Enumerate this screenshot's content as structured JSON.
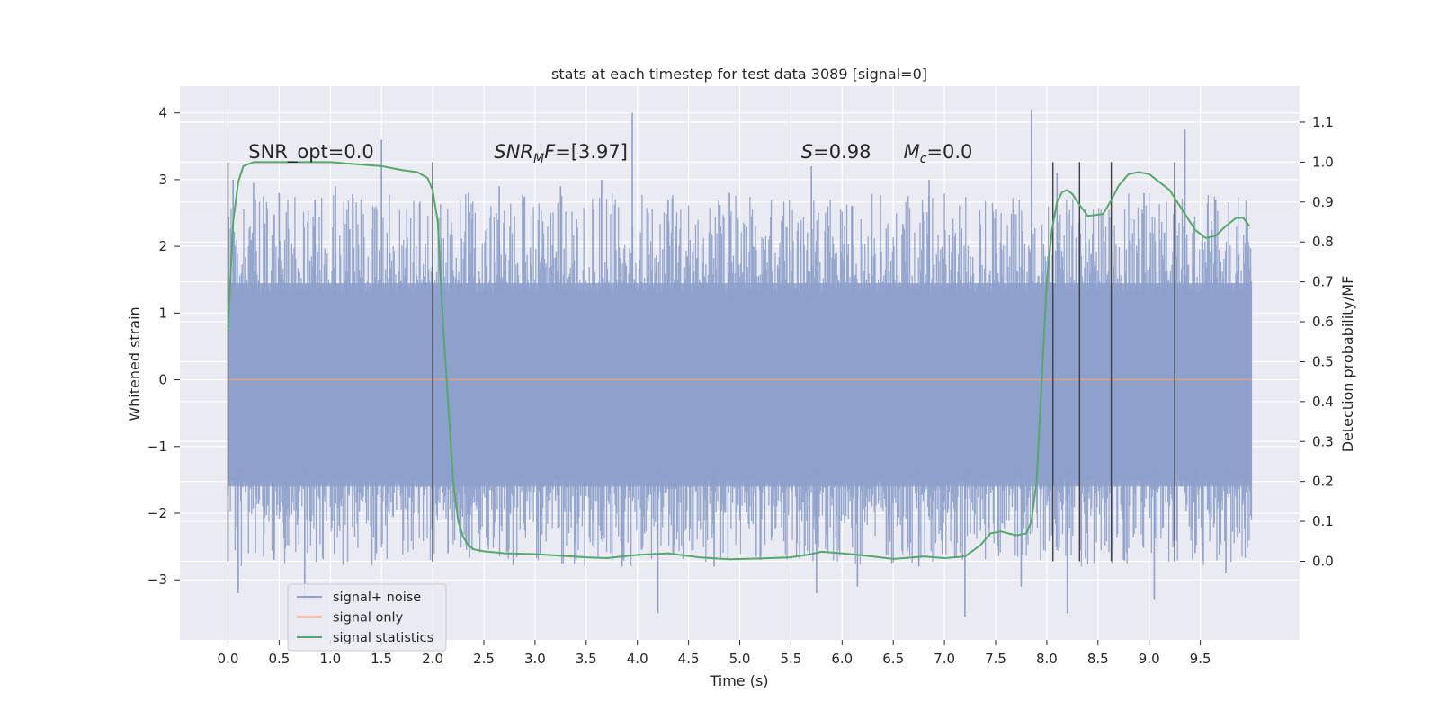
{
  "chart_data": {
    "type": "line",
    "title": "stats at each timestep for test data 3089 [signal=0]",
    "xlabel": "Time (s)",
    "ylabel": "Whitened strain",
    "ylabel_right": "Detection probability/MF",
    "xlim": [
      -0.47,
      10.47
    ],
    "ylim": [
      -3.9,
      4.4
    ],
    "ylim_right": [
      -0.197,
      1.19
    ],
    "x_ticks": [
      0.0,
      0.5,
      1.0,
      1.5,
      2.0,
      2.5,
      3.0,
      3.5,
      4.0,
      4.5,
      5.0,
      5.5,
      6.0,
      6.5,
      7.0,
      7.5,
      8.0,
      8.5,
      9.0,
      9.5
    ],
    "x_tick_labels": [
      "0.0",
      "0.5",
      "1.0",
      "1.5",
      "2.0",
      "2.5",
      "3.0",
      "3.5",
      "4.0",
      "4.5",
      "5.0",
      "5.5",
      "6.0",
      "6.5",
      "7.0",
      "7.5",
      "8.0",
      "8.5",
      "9.0",
      "9.5"
    ],
    "y_ticks": [
      -3,
      -2,
      -1,
      0,
      1,
      2,
      3,
      4
    ],
    "y_tick_labels": [
      "−3",
      "−2",
      "−1",
      "0",
      "1",
      "2",
      "3",
      "4"
    ],
    "y_right_ticks": [
      0.0,
      0.1,
      0.2,
      0.3,
      0.4,
      0.5,
      0.6,
      0.7,
      0.8,
      0.9,
      1.0,
      1.1
    ],
    "y_right_tick_labels": [
      "0.0",
      "0.1",
      "0.2",
      "0.3",
      "0.4",
      "0.5",
      "0.6",
      "0.7",
      "0.8",
      "0.9",
      "1.0",
      "1.1"
    ],
    "grid": true,
    "legend_position": "lower-left",
    "series": [
      {
        "name": "signal+ noise",
        "color": "#8da0cb",
        "axis": "left",
        "x_range": [
          0.0,
          10.0
        ],
        "dense_band": [
          -1.6,
          1.45
        ],
        "peaks_high": [
          [
            0.05,
            3.0
          ],
          [
            0.25,
            2.95
          ],
          [
            0.5,
            2.8
          ],
          [
            0.85,
            2.7
          ],
          [
            1.05,
            2.9
          ],
          [
            1.5,
            3.6
          ],
          [
            2.35,
            2.8
          ],
          [
            2.65,
            2.9
          ],
          [
            3.25,
            2.9
          ],
          [
            3.65,
            3.0
          ],
          [
            3.95,
            4.0
          ],
          [
            4.3,
            2.7
          ],
          [
            4.9,
            2.8
          ],
          [
            5.7,
            3.2
          ],
          [
            6.1,
            2.6
          ],
          [
            6.85,
            3.0
          ],
          [
            7.85,
            4.05
          ],
          [
            8.1,
            3.1
          ],
          [
            8.95,
            2.8
          ],
          [
            9.35,
            3.75
          ],
          [
            9.65,
            2.7
          ]
        ],
        "peaks_low": [
          [
            0.1,
            -3.2
          ],
          [
            0.45,
            -2.7
          ],
          [
            0.75,
            -3.3
          ],
          [
            1.45,
            -2.6
          ],
          [
            2.15,
            -2.6
          ],
          [
            3.05,
            -2.6
          ],
          [
            3.4,
            -2.7
          ],
          [
            3.85,
            -2.8
          ],
          [
            4.2,
            -3.5
          ],
          [
            4.75,
            -2.8
          ],
          [
            5.2,
            -2.7
          ],
          [
            5.75,
            -3.2
          ],
          [
            6.15,
            -3.1
          ],
          [
            6.75,
            -2.8
          ],
          [
            7.2,
            -3.55
          ],
          [
            7.75,
            -3.1
          ],
          [
            8.2,
            -3.5
          ],
          [
            8.75,
            -2.7
          ],
          [
            9.05,
            -3.3
          ],
          [
            9.45,
            -2.6
          ],
          [
            9.75,
            -2.9
          ]
        ]
      },
      {
        "name": "signal only",
        "color": "#e8a07c",
        "axis": "left",
        "x": [
          0.0,
          10.0
        ],
        "values": [
          0,
          0
        ]
      },
      {
        "name": "signal statistics",
        "color": "#55a868",
        "axis": "right",
        "x": [
          0.0,
          0.05,
          0.1,
          0.15,
          0.25,
          0.5,
          1.0,
          1.5,
          1.7,
          1.85,
          1.95,
          2.0,
          2.05,
          2.1,
          2.15,
          2.2,
          2.25,
          2.3,
          2.35,
          2.4,
          2.5,
          2.7,
          3.0,
          3.5,
          3.7,
          4.0,
          4.3,
          4.6,
          4.9,
          5.2,
          5.5,
          5.7,
          5.8,
          6.0,
          6.3,
          6.5,
          6.8,
          7.0,
          7.2,
          7.35,
          7.45,
          7.55,
          7.7,
          7.8,
          7.85,
          7.9,
          7.95,
          8.0,
          8.05,
          8.1,
          8.15,
          8.2,
          8.25,
          8.3,
          8.4,
          8.55,
          8.62,
          8.7,
          8.8,
          8.9,
          9.0,
          9.2,
          9.35,
          9.45,
          9.55,
          9.65,
          9.75,
          9.85,
          9.92,
          9.98
        ],
        "values": [
          0.58,
          0.85,
          0.95,
          0.99,
          1.0,
          1.0,
          1.0,
          0.99,
          0.98,
          0.975,
          0.96,
          0.93,
          0.85,
          0.6,
          0.4,
          0.2,
          0.1,
          0.06,
          0.04,
          0.03,
          0.025,
          0.02,
          0.018,
          0.01,
          0.008,
          0.016,
          0.02,
          0.01,
          0.005,
          0.007,
          0.01,
          0.018,
          0.024,
          0.02,
          0.012,
          0.006,
          0.012,
          0.008,
          0.012,
          0.04,
          0.07,
          0.075,
          0.065,
          0.07,
          0.1,
          0.2,
          0.45,
          0.7,
          0.83,
          0.9,
          0.925,
          0.93,
          0.92,
          0.9,
          0.865,
          0.87,
          0.9,
          0.94,
          0.97,
          0.975,
          0.97,
          0.93,
          0.87,
          0.83,
          0.81,
          0.815,
          0.84,
          0.86,
          0.86,
          0.84
        ]
      }
    ],
    "vertical_lines_x": [
      0.0,
      2.0,
      8.06,
      8.32,
      8.63,
      9.25
    ],
    "vertical_lines_right_range": [
      0.0,
      1.0
    ],
    "annotations": [
      {
        "text": "SNR_opt=0.0",
        "x": 0.2,
        "y_right": 1.01
      },
      {
        "text": "=[3.97]",
        "prefix_italic": "SNR",
        "sub": "M",
        "suffix_italic": "F",
        "x": 2.6,
        "y_right": 1.01
      },
      {
        "text": "=0.98",
        "prefix_italic": "S",
        "x": 5.6,
        "y_right": 1.01
      },
      {
        "text": "=0.0",
        "prefix_italic": "M",
        "sub": "c",
        "x": 6.6,
        "y_right": 1.01
      }
    ],
    "colors": {
      "plot_background": "#eaeaf2",
      "grid": "#ffffff",
      "text": "#262626",
      "vline": "#404040"
    }
  }
}
